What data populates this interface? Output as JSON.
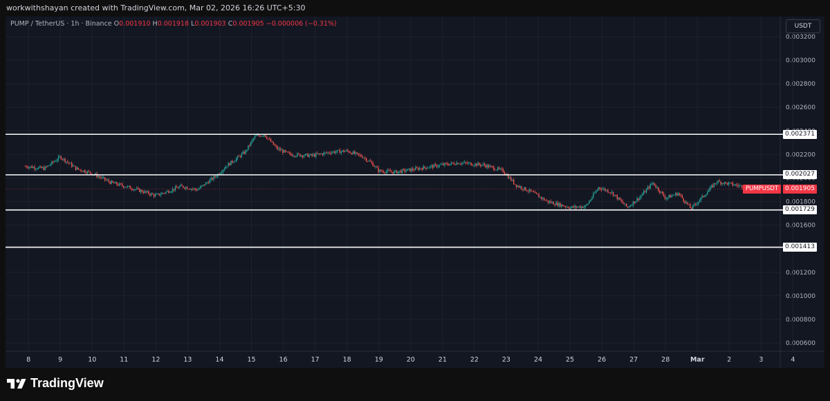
{
  "header": {
    "attribution": "workwithshayan created with TradingView.com, Mar 02, 2026 16:26 UTC+5:30"
  },
  "legend": {
    "symbol": "PUMP / TetherUS · 1h · Binance",
    "open_label": "O",
    "open": "0.001910",
    "high_label": "H",
    "high": "0.001918",
    "low_label": "L",
    "low": "0.001903",
    "close_label": "C",
    "close": "0.001905",
    "change": "−0.000006 (−0.31%)"
  },
  "currency_button": "USDT",
  "colors": {
    "up": "#26a69a",
    "down": "#ef5350",
    "background": "#131722",
    "grid": "#1e222d",
    "level_line": "#ffffff",
    "last_price": "#f23645"
  },
  "price_axis": {
    "ticks": [
      "0.003200",
      "0.003000",
      "0.002800",
      "0.002600",
      "0.002400",
      "0.002200",
      "0.002000",
      "0.001800",
      "0.001600",
      "0.001400",
      "0.001200",
      "0.001000",
      "0.000800",
      "0.000600"
    ]
  },
  "time_axis": {
    "ticks": [
      "8",
      "9",
      "10",
      "11",
      "12",
      "13",
      "14",
      "15",
      "16",
      "17",
      "18",
      "19",
      "20",
      "21",
      "22",
      "23",
      "24",
      "25",
      "26",
      "27",
      "28",
      "Mar",
      "2",
      "3",
      "4"
    ]
  },
  "level_labels": [
    "0.002371",
    "0.002027",
    "0.001729",
    "0.001413"
  ],
  "last_price": {
    "symbol": "PUMPUSDT",
    "value": "0.001905"
  },
  "brand": {
    "logo_icon": "tradingview-logo-icon",
    "name": "TradingView"
  },
  "chart_data": {
    "type": "candlestick",
    "symbol": "PUMP / TetherUS",
    "interval": "1h",
    "exchange": "Binance",
    "ylim": [
      0.00053,
      0.00337
    ],
    "horizontal_levels": [
      0.002371,
      0.002027,
      0.001729,
      0.001413
    ],
    "last_price": 0.001905,
    "price_path": [
      {
        "x": 7.9,
        "y": 0.0021
      },
      {
        "x": 8.5,
        "y": 0.00208
      },
      {
        "x": 9.0,
        "y": 0.00218
      },
      {
        "x": 9.5,
        "y": 0.00208
      },
      {
        "x": 10.0,
        "y": 0.00204
      },
      {
        "x": 10.6,
        "y": 0.00196
      },
      {
        "x": 11.3,
        "y": 0.00191
      },
      {
        "x": 12.0,
        "y": 0.00185
      },
      {
        "x": 12.8,
        "y": 0.00193
      },
      {
        "x": 13.3,
        "y": 0.0019
      },
      {
        "x": 13.9,
        "y": 0.00202
      },
      {
        "x": 14.2,
        "y": 0.0021
      },
      {
        "x": 14.8,
        "y": 0.00222
      },
      {
        "x": 15.1,
        "y": 0.00235
      },
      {
        "x": 15.4,
        "y": 0.00237
      },
      {
        "x": 15.8,
        "y": 0.00225
      },
      {
        "x": 16.2,
        "y": 0.0022
      },
      {
        "x": 16.9,
        "y": 0.00219
      },
      {
        "x": 17.5,
        "y": 0.00222
      },
      {
        "x": 18.0,
        "y": 0.00223
      },
      {
        "x": 18.5,
        "y": 0.00218
      },
      {
        "x": 18.8,
        "y": 0.00212
      },
      {
        "x": 19.0,
        "y": 0.00206
      },
      {
        "x": 19.5,
        "y": 0.00205
      },
      {
        "x": 20.0,
        "y": 0.00207
      },
      {
        "x": 20.7,
        "y": 0.0021
      },
      {
        "x": 21.5,
        "y": 0.00213
      },
      {
        "x": 22.3,
        "y": 0.00211
      },
      {
        "x": 22.9,
        "y": 0.00206
      },
      {
        "x": 23.3,
        "y": 0.00194
      },
      {
        "x": 23.8,
        "y": 0.00188
      },
      {
        "x": 24.3,
        "y": 0.0018
      },
      {
        "x": 25.0,
        "y": 0.00175
      },
      {
        "x": 25.5,
        "y": 0.00176
      },
      {
        "x": 25.9,
        "y": 0.00192
      },
      {
        "x": 26.3,
        "y": 0.00188
      },
      {
        "x": 26.8,
        "y": 0.00175
      },
      {
        "x": 27.2,
        "y": 0.00184
      },
      {
        "x": 27.6,
        "y": 0.00196
      },
      {
        "x": 28.0,
        "y": 0.00183
      },
      {
        "x": 28.4,
        "y": 0.00187
      },
      {
        "x": 28.8,
        "y": 0.00174
      },
      {
        "x": 29.2,
        "y": 0.00185
      },
      {
        "x": 29.6,
        "y": 0.00197
      },
      {
        "x": 30.0,
        "y": 0.00195
      },
      {
        "x": 30.4,
        "y": 0.00193
      },
      {
        "x": 30.6,
        "y": 0.0019
      }
    ]
  }
}
